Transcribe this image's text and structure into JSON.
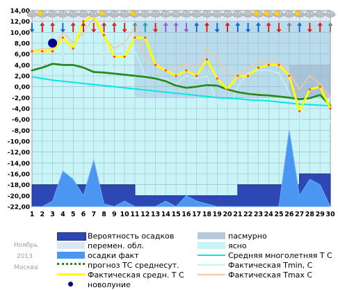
{
  "chart_data": {
    "type": "line",
    "x": [
      1,
      2,
      3,
      4,
      5,
      6,
      7,
      8,
      9,
      10,
      11,
      12,
      13,
      14,
      15,
      16,
      17,
      18,
      19,
      20,
      21,
      22,
      23,
      24,
      25,
      26,
      27,
      28,
      29,
      30
    ],
    "x_tick_labels": [
      "1",
      "2",
      "3",
      "4",
      "5",
      "6",
      "7",
      "8",
      "9",
      "10",
      "11",
      "12",
      "13",
      "14",
      "15",
      "16",
      "17",
      "18",
      "19",
      "20",
      "21",
      "22",
      "23",
      "24",
      "25",
      "26",
      "27",
      "28",
      "29",
      "30"
    ],
    "ylim": [
      -22,
      14
    ],
    "y_tick_values": [
      14,
      12,
      10,
      8,
      6,
      4,
      2,
      0,
      -2,
      -4,
      -6,
      -8,
      -10,
      -12,
      -14,
      -16,
      -18,
      -20,
      -22
    ],
    "y_tick_labels": [
      "14,00",
      "12,00",
      "10,00",
      "8,00",
      "6,00",
      "4,00",
      "2,00",
      "0,00",
      "-2,00",
      "-4,00",
      "-6,00",
      "-8,00",
      "-10,00",
      "-12,00",
      "-14,00",
      "-16,00",
      "-18,00",
      "-20,00",
      "-22,00"
    ],
    "grid": true,
    "series": [
      {
        "name": "Средняя многолетняя Т С",
        "color": "#00e5e5",
        "values": [
          1.8,
          1.5,
          1.2,
          1.0,
          0.8,
          0.6,
          0.4,
          0.2,
          0.0,
          -0.2,
          -0.4,
          -0.6,
          -0.8,
          -1.0,
          -1.2,
          -1.4,
          -1.6,
          -1.8,
          -2.0,
          -2.1,
          -2.2,
          -2.4,
          -2.5,
          -2.6,
          -2.8,
          -3.0,
          -3.2,
          -3.3,
          -3.4,
          -3.5
        ]
      },
      {
        "name": "прогноз ТС среднесут.",
        "color": "#228b22",
        "values": [
          3.0,
          3.5,
          4.2,
          4.0,
          4.0,
          3.5,
          2.7,
          2.6,
          2.4,
          2.2,
          2.0,
          1.8,
          1.5,
          1.0,
          0.2,
          -0.2,
          0.0,
          0.3,
          0.2,
          -0.5,
          -1.0,
          -1.3,
          -1.5,
          -1.6,
          -1.8,
          -2.0,
          -2.3,
          -2.1,
          -1.5,
          -3.5
        ]
      },
      {
        "name": "Фактическая Tmin, С",
        "color": "#c8f0f0",
        "values": [
          3.0,
          4.0,
          2.5,
          6.0,
          4.0,
          3.0,
          10.5,
          6.0,
          3.0,
          6.0,
          6.5,
          2.0,
          1.5,
          1.5,
          0.5,
          2.0,
          1.5,
          2.0,
          -3.0,
          -5.0,
          0.0,
          2.5,
          3.0,
          3.0,
          2.5,
          -1.0,
          -6.5,
          -2.5,
          -1.5,
          -6.5
        ]
      },
      {
        "name": "Фактическая Tmax C",
        "color": "#f0c8a8",
        "values": [
          6.5,
          7.0,
          7.0,
          10.0,
          8.0,
          10.0,
          12.5,
          9.0,
          7.0,
          8.0,
          11.0,
          5.0,
          4.5,
          3.0,
          3.5,
          4.0,
          3.5,
          7.0,
          5.0,
          2.5,
          2.0,
          3.5,
          4.5,
          5.0,
          4.5,
          2.5,
          -0.5,
          2.0,
          0.5,
          -2.0
        ]
      },
      {
        "name": "Фактическая средн. Т С",
        "color": "#ffff00",
        "values": [
          6.5,
          6.5,
          6.5,
          9.0,
          7.0,
          12.0,
          13.0,
          9.5,
          5.5,
          5.5,
          9.0,
          9.0,
          4.0,
          3.0,
          2.0,
          3.0,
          2.0,
          5.0,
          1.5,
          -0.5,
          2.0,
          2.0,
          3.5,
          4.0,
          4.0,
          2.0,
          -4.5,
          -0.5,
          0.0,
          -4.0
        ]
      }
    ],
    "precip_prob": [
      -18,
      -18,
      -18,
      -18,
      -18,
      -18,
      -18,
      -18,
      -18,
      -18,
      -20,
      -20,
      -20,
      -20,
      -20,
      -20,
      -20,
      -20,
      -20,
      -20,
      -18,
      -18,
      -18,
      -18,
      -18,
      -18,
      -16,
      -16,
      -16,
      -16
    ],
    "precip_fact": [
      -22,
      -22,
      -21,
      -15.5,
      -17,
      -20,
      -13.5,
      -21.5,
      -22,
      -21,
      -22,
      -22,
      -22,
      -21,
      -22,
      -20,
      -21,
      -21.5,
      -22,
      -22,
      -22,
      -22,
      -22,
      -22,
      -22,
      -8,
      -20,
      -17,
      -18,
      -22
    ],
    "cloudy_days": [
      1,
      2,
      3,
      4,
      5,
      6,
      7,
      8,
      9,
      10,
      11,
      12,
      13,
      14,
      15,
      16,
      17,
      18,
      19,
      20,
      21,
      22,
      23,
      24,
      25,
      26,
      27,
      28,
      29,
      30
    ],
    "sun_days": [
      2,
      8,
      11,
      23,
      24,
      25,
      27
    ],
    "new_moon": {
      "x": 3,
      "y": 8
    },
    "wind_colors": [
      "#1e64d2",
      "#e01e1e",
      "#e01e1e",
      "#1e64d2",
      "#e01e1e",
      "#e01e1e",
      "#e01e1e",
      "#e01e1e",
      "#e01e1e",
      "#e01e1e",
      "#808080",
      "#1ea0b4",
      "#e01e1e",
      "#9b5cd2",
      "#9b5cd2",
      "#9b5cd2",
      "#1e64d2",
      "#e01e1e",
      "#1e64d2",
      "#e01e1e",
      "#1e64d2",
      "#1e64d2",
      "#1e64d2",
      "#e01e1e",
      "#e01e1e",
      "#808080",
      "#1e64d2",
      "#e01e1e",
      "#e01e1e",
      "#808080"
    ],
    "month_label": "Ноябрь",
    "year_label": "2013",
    "city_label": "Москва",
    "legend": [
      {
        "label": "Вероятность осадков",
        "kind": "box",
        "color": "#2d47b4"
      },
      {
        "label": "пасмурно",
        "kind": "box",
        "color": "#b8c8dc"
      },
      {
        "label": "перемен. обл.",
        "kind": "box",
        "color": "#dce8f4"
      },
      {
        "label": "ясно",
        "kind": "box",
        "color": "#c8f4f8"
      },
      {
        "label": "осадки факт",
        "kind": "box",
        "color": "#4b96f0"
      },
      {
        "label": "Средняя многолетняя Т С",
        "kind": "line",
        "color": "#00e5e5"
      },
      {
        "label": "прогноз ТС среднесут.",
        "kind": "dots",
        "color": "#228b22"
      },
      {
        "label": "Фактическая Tmin, С",
        "kind": "line",
        "color": "#c8f0f0"
      },
      {
        "label": "Фактическая средн. Т С",
        "kind": "yline",
        "color": "#ffff00"
      },
      {
        "label": "Фактическая Tmax C",
        "kind": "line",
        "color": "#f0c8a8"
      },
      {
        "label": "новолуние",
        "kind": "moon",
        "color": "#00008b"
      }
    ]
  }
}
